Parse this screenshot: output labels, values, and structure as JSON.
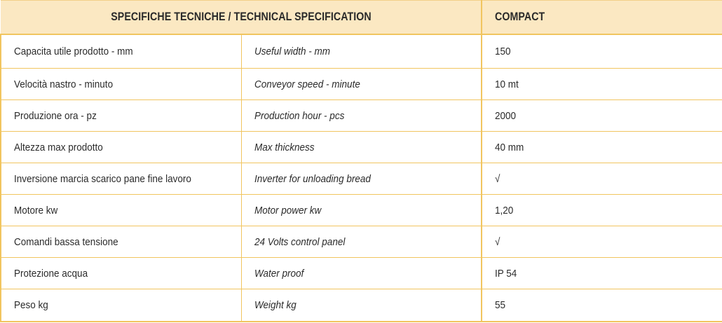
{
  "table": {
    "header": {
      "spec": "SPECIFICHE TECNICHE / TECHNICAL SPECIFICATION",
      "model": "COMPACT"
    },
    "rows": [
      {
        "it": "Capacita utile prodotto - mm",
        "en": "Useful width - mm",
        "value": "150"
      },
      {
        "it": "Velocità nastro - minuto",
        "en": "Conveyor speed - minute",
        "value": "10 mt"
      },
      {
        "it": "Produzione ora - pz",
        "en": "Production hour - pcs",
        "value": "2000"
      },
      {
        "it": "Altezza max prodotto",
        "en": "Max thickness",
        "value": "40 mm"
      },
      {
        "it": "Inversione marcia scarico pane fine lavoro",
        "en": "Inverter for unloading bread",
        "value": "√"
      },
      {
        "it": "Motore kw",
        "en": "Motor power kw",
        "value": "1,20"
      },
      {
        "it": "Comandi bassa tensione",
        "en": "24 Volts control panel",
        "value": "√"
      },
      {
        "it": "Protezione acqua",
        "en": "Water proof",
        "value": "IP 54"
      },
      {
        "it": "Peso kg",
        "en": "Weight kg",
        "value": "55"
      }
    ]
  }
}
